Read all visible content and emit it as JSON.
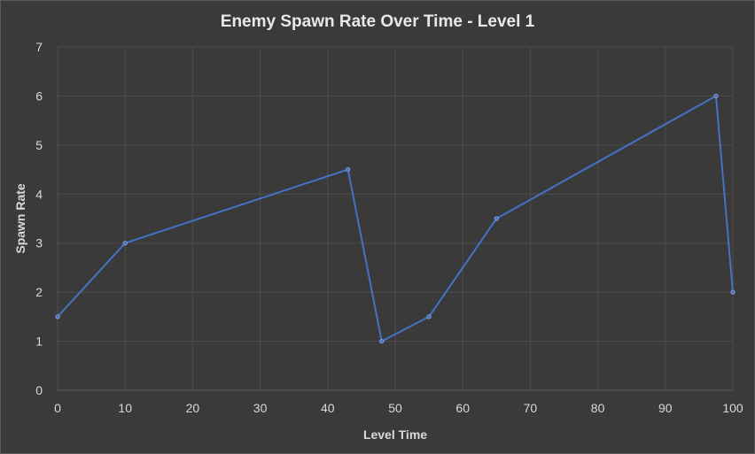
{
  "chart_data": {
    "type": "line",
    "title": "Enemy Spawn Rate Over Time - Level 1",
    "xlabel": "Level Time",
    "ylabel": "Spawn Rate",
    "xlim": [
      0,
      100
    ],
    "ylim": [
      0,
      7
    ],
    "x_ticks": [
      0,
      10,
      20,
      30,
      40,
      50,
      60,
      70,
      80,
      90,
      100
    ],
    "y_ticks": [
      0,
      1,
      2,
      3,
      4,
      5,
      6,
      7
    ],
    "grid": true,
    "legend": "none",
    "series": [
      {
        "color": "#4472c4",
        "x": [
          0,
          10,
          43,
          48,
          55,
          65,
          97.5,
          100
        ],
        "y": [
          1.5,
          3,
          4.5,
          1,
          1.5,
          3.5,
          6,
          2
        ]
      }
    ]
  }
}
